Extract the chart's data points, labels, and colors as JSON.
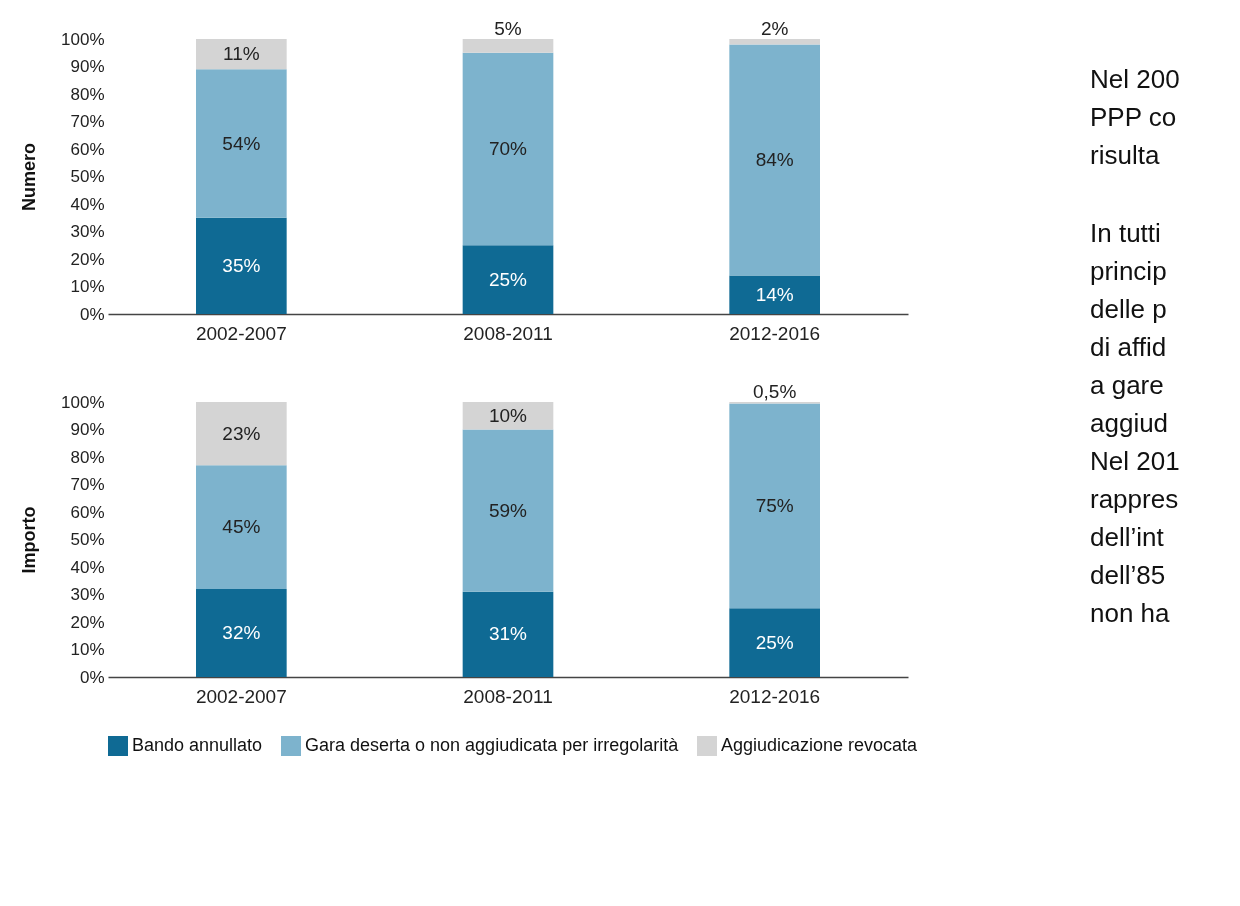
{
  "chart_data": [
    {
      "type": "bar",
      "stacked": true,
      "ylabel": "Numero",
      "categories": [
        "2002-2007",
        "2008-2011",
        "2012-2016"
      ],
      "ylim": [
        0,
        100
      ],
      "yticks": [
        {
          "value": 0,
          "label": "0%"
        },
        {
          "value": 10,
          "label": "10%"
        },
        {
          "value": 20,
          "label": "20%"
        },
        {
          "value": 30,
          "label": "30%"
        },
        {
          "value": 40,
          "label": "40%"
        },
        {
          "value": 50,
          "label": "50%"
        },
        {
          "value": 60,
          "label": "60%"
        },
        {
          "value": 70,
          "label": "70%"
        },
        {
          "value": 80,
          "label": "80%"
        },
        {
          "value": 90,
          "label": "90%"
        },
        {
          "value": 100,
          "label": "100%"
        }
      ],
      "series": [
        {
          "color": "#0f6a94",
          "values": [
            35,
            25,
            14
          ],
          "value_labels": [
            "35%",
            "25%",
            "14%"
          ]
        },
        {
          "color": "#7db3cd",
          "values": [
            54,
            70,
            84
          ],
          "value_labels": [
            "54%",
            "70%",
            "84%"
          ]
        },
        {
          "color": "#d4d4d4",
          "values": [
            11,
            5,
            2
          ],
          "value_labels": [
            "11%",
            "5%",
            "2%"
          ]
        }
      ]
    },
    {
      "type": "bar",
      "stacked": true,
      "ylabel": "Importo",
      "categories": [
        "2002-2007",
        "2008-2011",
        "2012-2016"
      ],
      "legend": "bottom",
      "ylim": [
        0,
        100
      ],
      "yticks": [
        {
          "value": 0,
          "label": "0%"
        },
        {
          "value": 10,
          "label": "10%"
        },
        {
          "value": 20,
          "label": "20%"
        },
        {
          "value": 30,
          "label": "30%"
        },
        {
          "value": 40,
          "label": "40%"
        },
        {
          "value": 50,
          "label": "50%"
        },
        {
          "value": 60,
          "label": "60%"
        },
        {
          "value": 70,
          "label": "70%"
        },
        {
          "value": 80,
          "label": "80%"
        },
        {
          "value": 90,
          "label": "90%"
        },
        {
          "value": 100,
          "label": "100%"
        }
      ],
      "series": [
        {
          "name": "Bando annullato",
          "color": "#0f6a94",
          "values": [
            32,
            31,
            25
          ],
          "value_labels": [
            "32%",
            "31%",
            "25%"
          ]
        },
        {
          "name": "Gara deserta o non aggiudicata per irregolarità",
          "color": "#7db3cd",
          "values": [
            45,
            59,
            74.5
          ],
          "value_labels": [
            "45%",
            "59%",
            "75%"
          ]
        },
        {
          "name": "Aggiudicazione revocata",
          "color": "#d4d4d4",
          "values": [
            23,
            10,
            0.5
          ],
          "value_labels": [
            "23%",
            "10%",
            "0,5%"
          ]
        }
      ],
      "annotations": [
        "Nel 200",
        "PPP co",
        "risulta",
        "In tutti",
        "princip",
        "delle p",
        "di affid",
        "a gare",
        "aggiud",
        "Nel 201",
        "rappres",
        "dell’int",
        "dell’85",
        "non ha"
      ]
    }
  ]
}
